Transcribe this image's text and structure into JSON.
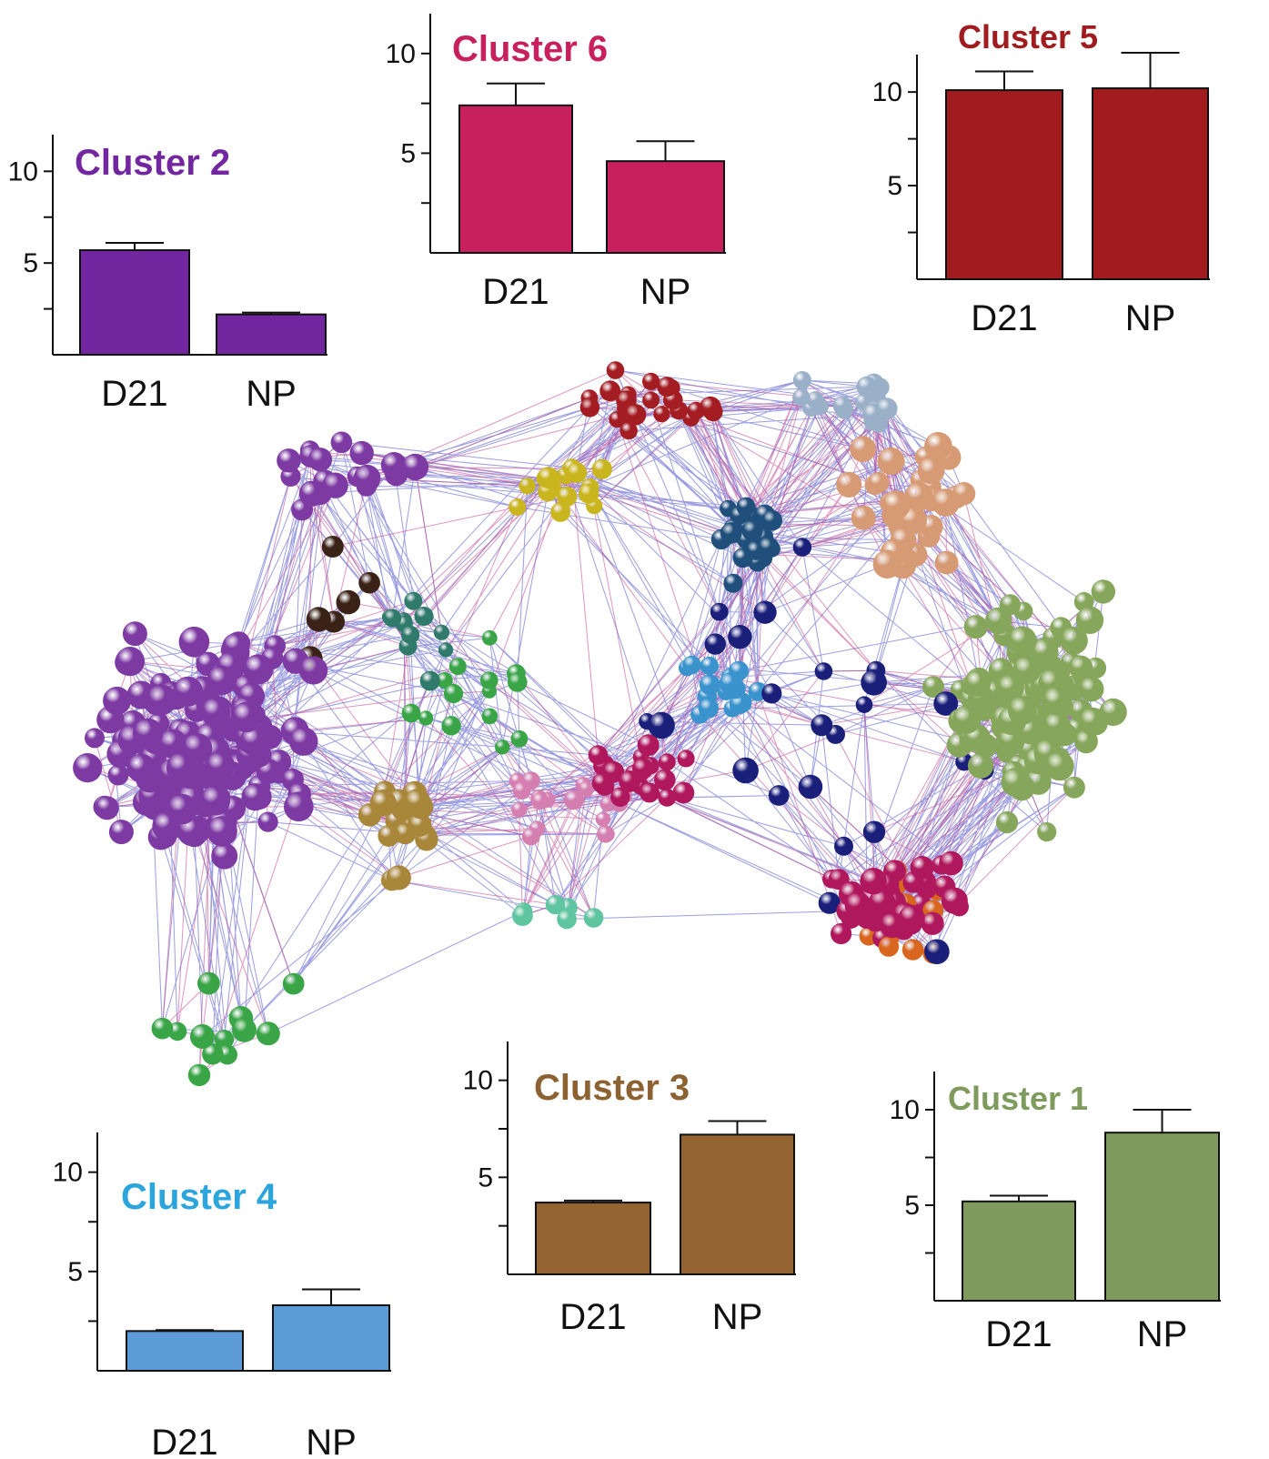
{
  "network": {
    "cluster_colors": {
      "cluster_1": "#86a65b",
      "cluster_2": "#7d3aa3",
      "cluster_3": "#a8863a",
      "cluster_4": "#3a93cc",
      "cluster_5": "#a31d22",
      "cluster_6": "#b0185e",
      "peach": "#d69a74",
      "navy": "#1a1f7a",
      "teal": "#2f7a6a",
      "yellow": "#c9b51e",
      "green": "#3aa547",
      "orange": "#d8661e",
      "pink": "#d47fb0",
      "slate": "#9ab0c8",
      "steelblue": "#1f4f7a",
      "brown": "#3a2316",
      "seafoam": "#5fc4a0"
    },
    "edge_colors": [
      "#4a4fc9",
      "#c0408a"
    ]
  },
  "chart_data": [
    {
      "id": "cluster-2",
      "type": "bar",
      "title": "Cluster 2",
      "title_color": "#7227a0",
      "bar_color": "#7227a0",
      "categories": [
        "D21",
        "NP"
      ],
      "values": [
        5.7,
        2.2
      ],
      "errors": [
        0.4,
        0.1
      ],
      "ylim": [
        0,
        12
      ],
      "yticks": [
        5,
        10
      ],
      "xlabel": "",
      "ylabel": "",
      "grid": false
    },
    {
      "id": "cluster-6",
      "type": "bar",
      "title": "Cluster 6",
      "title_color": "#c8205d",
      "bar_color": "#c8205d",
      "categories": [
        "D21",
        "NP"
      ],
      "values": [
        7.4,
        4.6
      ],
      "errors": [
        1.1,
        1.0
      ],
      "ylim": [
        0,
        12
      ],
      "yticks": [
        5,
        10
      ],
      "xlabel": "",
      "ylabel": "",
      "grid": false
    },
    {
      "id": "cluster-5",
      "type": "bar",
      "title": "Cluster 5",
      "title_color": "#a01c1e",
      "bar_color": "#a01c1e",
      "categories": [
        "D21",
        "NP"
      ],
      "values": [
        10.1,
        10.2
      ],
      "errors": [
        1.0,
        1.9
      ],
      "ylim": [
        0,
        12
      ],
      "yticks": [
        5,
        10
      ],
      "xlabel": "",
      "ylabel": "",
      "grid": false
    },
    {
      "id": "cluster-4",
      "type": "bar",
      "title": "Cluster 4",
      "title_color": "#2ba5dc",
      "bar_color": "#5c9bd5",
      "categories": [
        "D21",
        "NP"
      ],
      "values": [
        2.0,
        3.3
      ],
      "errors": [
        0.05,
        0.8
      ],
      "ylim": [
        0,
        12
      ],
      "yticks": [
        5,
        10
      ],
      "xlabel": "",
      "ylabel": "",
      "grid": false
    },
    {
      "id": "cluster-3",
      "type": "bar",
      "title": "Cluster 3",
      "title_color": "#8c6233",
      "bar_color": "#936431",
      "categories": [
        "D21",
        "NP"
      ],
      "values": [
        3.7,
        7.2
      ],
      "errors": [
        0.1,
        0.7
      ],
      "ylim": [
        0,
        12
      ],
      "yticks": [
        5,
        10
      ],
      "xlabel": "",
      "ylabel": "",
      "grid": false
    },
    {
      "id": "cluster-1",
      "type": "bar",
      "title": "Cluster 1",
      "title_color": "#7e9a5c",
      "bar_color": "#7e9a5c",
      "categories": [
        "D21",
        "NP"
      ],
      "values": [
        5.2,
        8.8
      ],
      "errors": [
        0.3,
        1.2
      ],
      "ylim": [
        0,
        12
      ],
      "yticks": [
        5,
        10
      ],
      "xlabel": "",
      "ylabel": "",
      "grid": false
    }
  ]
}
